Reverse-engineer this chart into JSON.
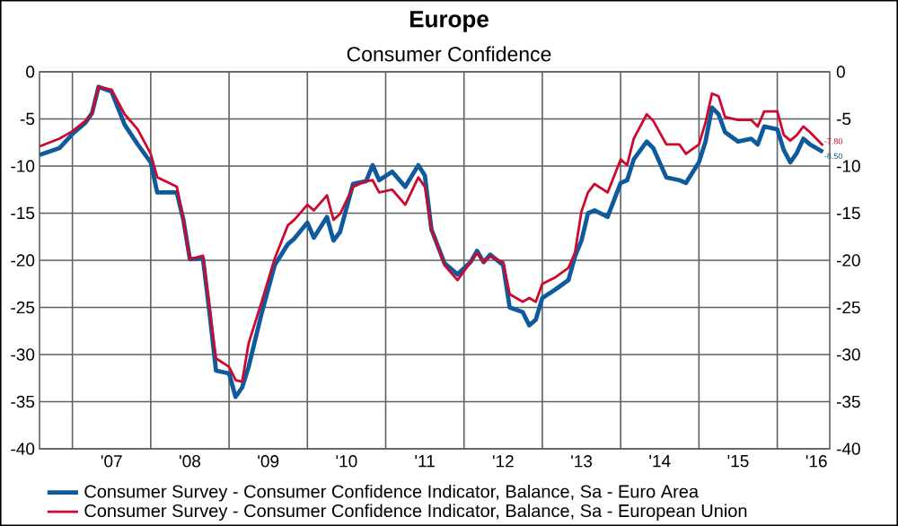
{
  "chart_data": {
    "type": "line",
    "title": "Europe",
    "subtitle": "Consumer Confidence",
    "x": [
      "2006-08",
      "2006-11",
      "2007-01",
      "2007-03",
      "2007-04",
      "2007-05",
      "2007-07",
      "2007-09",
      "2007-11",
      "2008-01",
      "2008-02",
      "2008-05",
      "2008-06",
      "2008-07",
      "2008-09",
      "2008-10",
      "2008-11",
      "2009-01",
      "2009-02",
      "2009-03",
      "2009-04",
      "2009-06",
      "2009-08",
      "2009-10",
      "2009-11",
      "2010-01",
      "2010-02",
      "2010-04",
      "2010-05",
      "2010-06",
      "2010-08",
      "2010-10",
      "2010-11",
      "2010-12",
      "2011-02",
      "2011-04",
      "2011-06",
      "2011-07",
      "2011-08",
      "2011-10",
      "2011-12",
      "2012-02",
      "2012-03",
      "2012-04",
      "2012-05",
      "2012-07",
      "2012-08",
      "2012-10",
      "2012-11",
      "2012-12",
      "2013-01",
      "2013-03",
      "2013-05",
      "2013-06",
      "2013-07",
      "2013-08",
      "2013-09",
      "2013-11",
      "2014-01",
      "2014-02",
      "2014-03",
      "2014-05",
      "2014-06",
      "2014-08",
      "2014-10",
      "2014-11",
      "2015-01",
      "2015-02",
      "2015-03",
      "2015-04",
      "2015-05",
      "2015-07",
      "2015-09",
      "2015-10",
      "2015-11",
      "2016-01",
      "2016-02",
      "2016-03",
      "2016-04",
      "2016-05",
      "2016-06",
      "2016-08"
    ],
    "series": [
      {
        "name": "Consumer Survey - Consumer Confidence Indicator, Balance, Sa - Euro Area",
        "color": "#0f5a9c",
        "values": [
          -8.8,
          -8.1,
          -6.6,
          -5.4,
          -4.4,
          -1.6,
          -2.1,
          -5.6,
          -7.7,
          -9.6,
          -12.8,
          -12.8,
          -15.7,
          -19.9,
          -19.8,
          -25.5,
          -31.7,
          -32,
          -34.5,
          -33.5,
          -31.3,
          -25.6,
          -20.5,
          -18.3,
          -17.7,
          -16,
          -17.6,
          -15.4,
          -17.9,
          -17,
          -11.9,
          -11.6,
          -9.9,
          -11.5,
          -10.6,
          -12.2,
          -9.9,
          -11,
          -16.7,
          -20.3,
          -21.5,
          -20.2,
          -19,
          -20.2,
          -19.4,
          -20.5,
          -25,
          -25.5,
          -26.9,
          -26.3,
          -24,
          -23.1,
          -22.1,
          -19.6,
          -17.9,
          -15,
          -14.7,
          -15.4,
          -11.8,
          -11.5,
          -9.3,
          -7.4,
          -8.1,
          -11.2,
          -11.5,
          -11.8,
          -9.6,
          -7.4,
          -3.8,
          -4.5,
          -6.4,
          -7.4,
          -7.1,
          -7.7,
          -5.8,
          -6.1,
          -8.3,
          -9.6,
          -8.6,
          -7.1,
          -7.7,
          -8.5
        ]
      },
      {
        "name": "Consumer Survey - Consumer Confidence Indicator, Balance, Sa - European Union",
        "color": "#cc0a2f",
        "values": [
          -7.9,
          -7.1,
          -6.3,
          -5.2,
          -4.4,
          -1.6,
          -1.9,
          -4.5,
          -6.1,
          -8.7,
          -11.2,
          -12.2,
          -15.7,
          -19.9,
          -19.5,
          -25,
          -30.4,
          -31.3,
          -32.7,
          -32.9,
          -28.8,
          -24.4,
          -19.8,
          -16.3,
          -15.7,
          -14.1,
          -14.7,
          -13.1,
          -15.7,
          -15.1,
          -12.2,
          -11.6,
          -11.5,
          -12.8,
          -12.5,
          -14.1,
          -11.2,
          -12.2,
          -16.7,
          -20.5,
          -22.1,
          -20.2,
          -19.2,
          -20.2,
          -19.6,
          -20.2,
          -23.6,
          -24.4,
          -24,
          -24.4,
          -22.5,
          -21.8,
          -20.8,
          -19.2,
          -14.8,
          -12.8,
          -11.9,
          -12.8,
          -9.3,
          -9.9,
          -7.1,
          -4.5,
          -5.2,
          -7.7,
          -7.7,
          -8.7,
          -7.7,
          -5.4,
          -2.3,
          -2.6,
          -4.8,
          -5.1,
          -5.1,
          -5.8,
          -4.2,
          -4.2,
          -6.7,
          -7.3,
          -6.7,
          -5.8,
          -6.4,
          -7.8
        ]
      }
    ],
    "xlim": [
      "2006-08",
      "2016-09"
    ],
    "xticks": [
      {
        "value": "2007-01",
        "label": null
      },
      {
        "value": "2008-01",
        "label": null
      },
      {
        "value": "2009-01",
        "label": null
      },
      {
        "value": "2010-01",
        "label": null
      },
      {
        "value": "2011-01",
        "label": null
      },
      {
        "value": "2012-01",
        "label": null
      },
      {
        "value": "2013-01",
        "label": null
      },
      {
        "value": "2014-01",
        "label": null
      },
      {
        "value": "2015-01",
        "label": null
      },
      {
        "value": "2016-01",
        "label": null
      },
      {
        "value": "2007-07",
        "label": "'07"
      },
      {
        "value": "2008-07",
        "label": "'08"
      },
      {
        "value": "2009-07",
        "label": "'09"
      },
      {
        "value": "2010-07",
        "label": "'10"
      },
      {
        "value": "2011-07",
        "label": "'11"
      },
      {
        "value": "2012-07",
        "label": "'12"
      },
      {
        "value": "2013-07",
        "label": "'13"
      },
      {
        "value": "2014-07",
        "label": "'14"
      },
      {
        "value": "2015-07",
        "label": "'15"
      },
      {
        "value": "2016-07",
        "label": "'16"
      }
    ],
    "ylim": [
      -40,
      0
    ],
    "yticks": [
      -40,
      -35,
      -30,
      -25,
      -20,
      -15,
      -10,
      -5,
      0
    ],
    "y2lim": [
      -40,
      0
    ],
    "y2ticks": [
      -40,
      -35,
      -30,
      -25,
      -20,
      -15,
      -10,
      -5,
      0
    ],
    "annotations": [
      {
        "text": "-8.50",
        "x": "2016-08",
        "y": -8.5
      },
      {
        "text": "-7.80",
        "x": "2016-08",
        "y": -7.8
      }
    ],
    "grid": true,
    "legend": "bottom"
  }
}
